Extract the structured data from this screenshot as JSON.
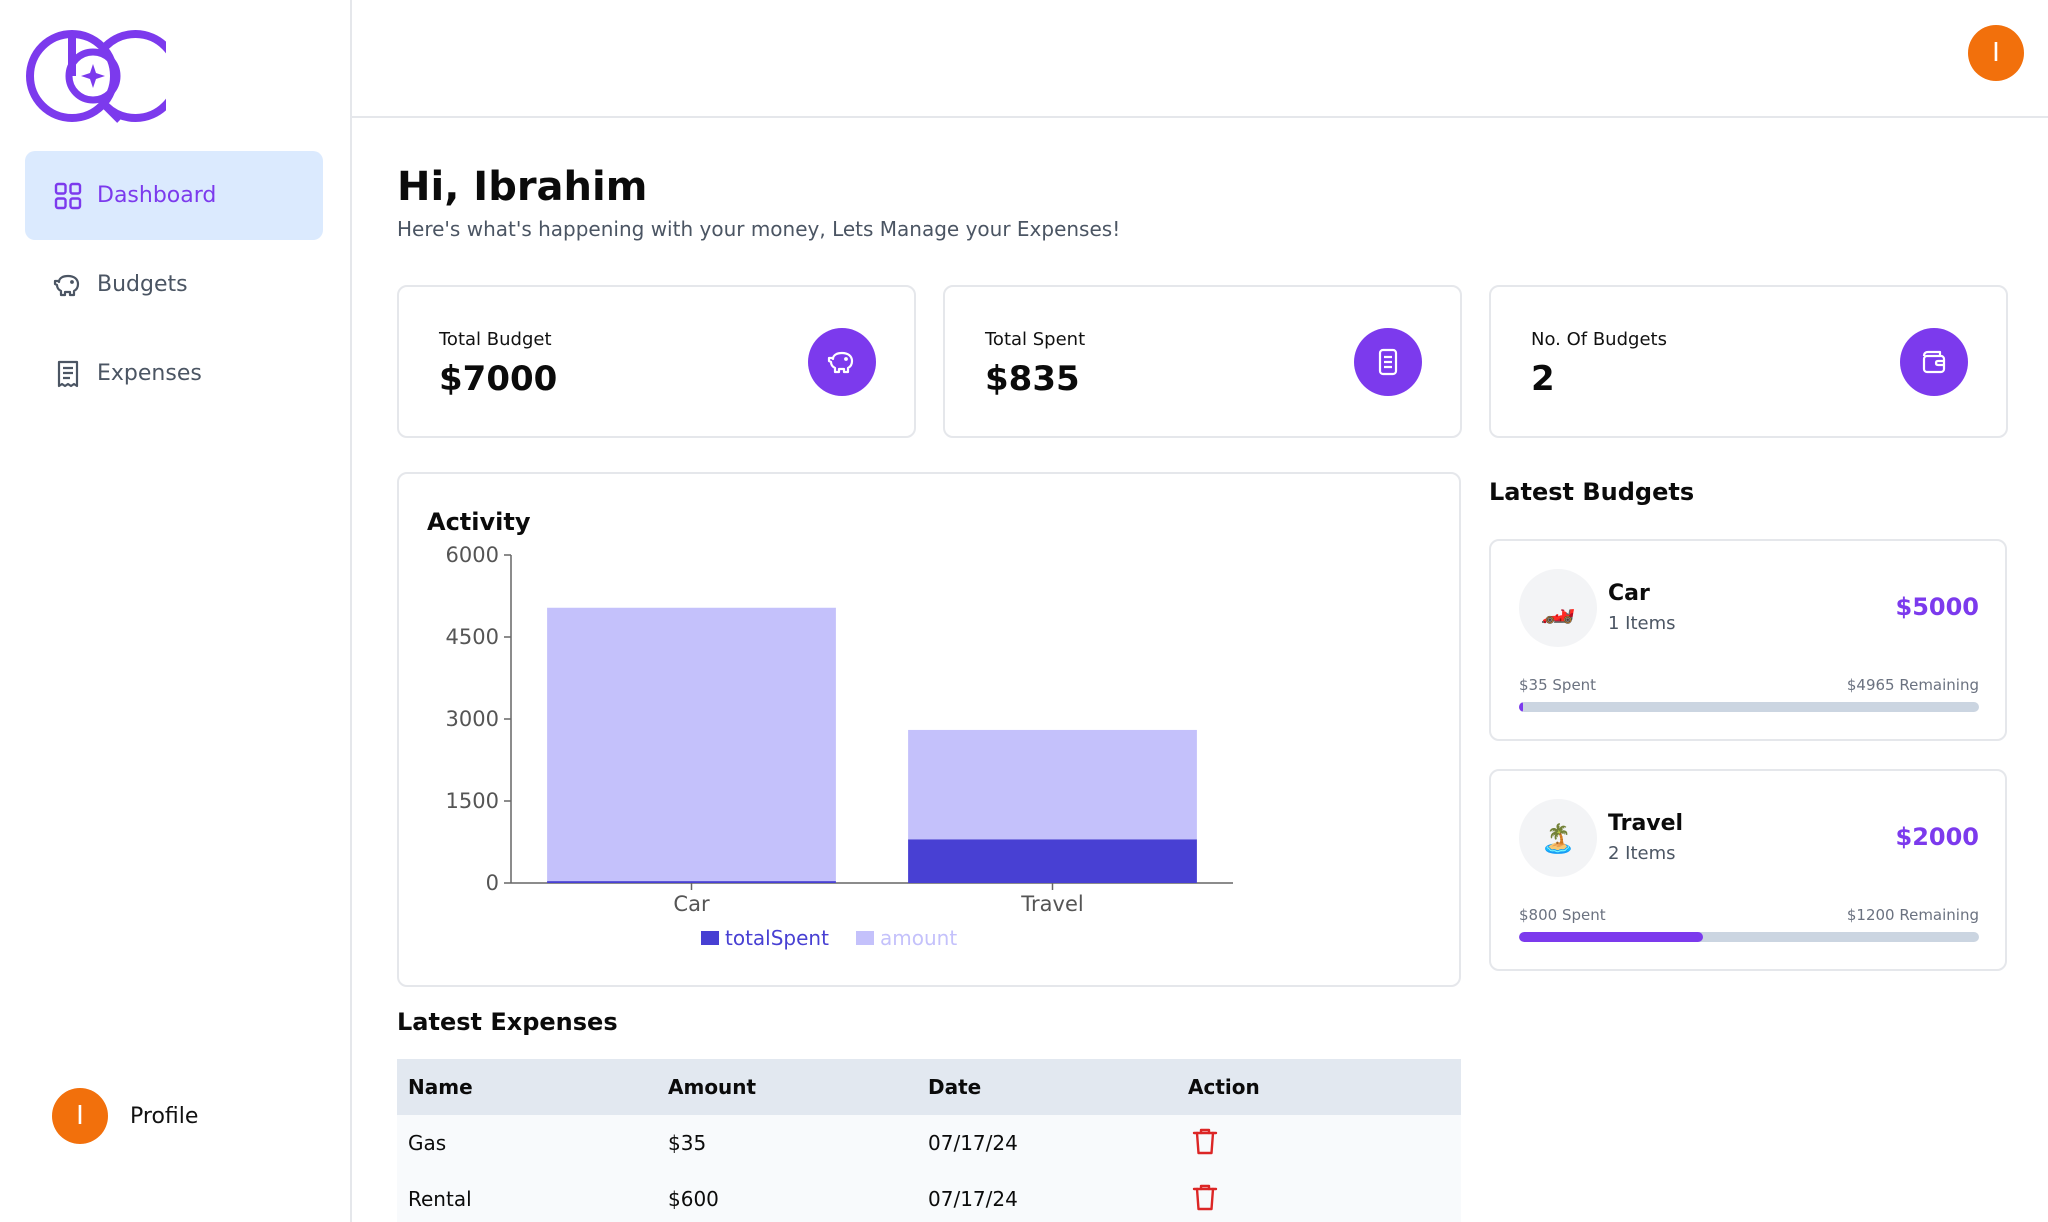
{
  "app": {
    "brand_color": "#7c3aed"
  },
  "sidebar": {
    "items": [
      {
        "label": "Dashboard",
        "icon": "grid-icon",
        "active": true
      },
      {
        "label": "Budgets",
        "icon": "piggy-bank-icon",
        "active": false
      },
      {
        "label": "Expenses",
        "icon": "receipt-icon",
        "active": false
      }
    ],
    "profile": {
      "avatar_initial": "I",
      "label": "Profile"
    }
  },
  "header": {
    "avatar_initial": "I"
  },
  "greeting": {
    "title": "Hi, Ibrahim",
    "subtitle": "Here's what's happening with your money, Lets Manage your Expenses!"
  },
  "stats": [
    {
      "label": "Total Budget",
      "value": "$7000",
      "icon": "piggy-bank-icon"
    },
    {
      "label": "Total Spent",
      "value": "$835",
      "icon": "receipt-icon"
    },
    {
      "label": "No. Of Budgets",
      "value": "2",
      "icon": "wallet-icon"
    }
  ],
  "activity": {
    "title": "Activity"
  },
  "chart_data": {
    "type": "bar",
    "stacked": true,
    "categories": [
      "Car",
      "Travel"
    ],
    "series": [
      {
        "name": "totalSpent",
        "values": [
          35,
          800
        ],
        "color": "#4840d3"
      },
      {
        "name": "amount",
        "values": [
          5000,
          2000
        ],
        "color": "#c4c1fb"
      }
    ],
    "ylim": [
      0,
      6000
    ],
    "yticks": [
      0,
      1500,
      3000,
      4500,
      6000
    ],
    "legend": "bottom",
    "grid": false
  },
  "latest_budgets": {
    "title": "Latest Budgets",
    "items": [
      {
        "emoji": "🏎️",
        "name": "Car",
        "items": "1 Items",
        "amount": "$5000",
        "spent": "$35 Spent",
        "remaining": "$4965 Remaining",
        "progress": 0.007
      },
      {
        "emoji": "🏝️",
        "name": "Travel",
        "items": "2 Items",
        "amount": "$2000",
        "spent": "$800 Spent",
        "remaining": "$1200 Remaining",
        "progress": 0.4
      }
    ]
  },
  "latest_expenses": {
    "title": "Latest Expenses",
    "columns": [
      "Name",
      "Amount",
      "Date",
      "Action"
    ],
    "rows": [
      {
        "name": "Gas",
        "amount": "$35",
        "date": "07/17/24"
      },
      {
        "name": "Rental",
        "amount": "$600",
        "date": "07/17/24"
      }
    ]
  }
}
